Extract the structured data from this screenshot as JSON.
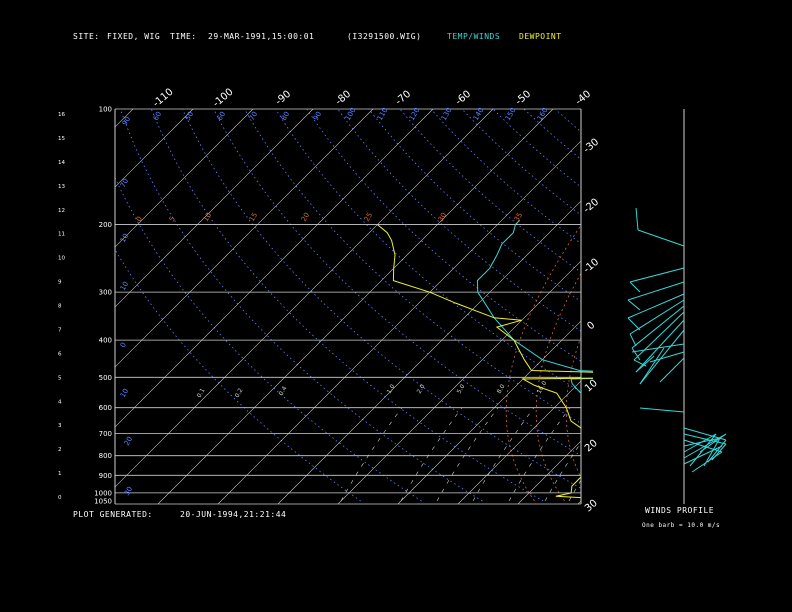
{
  "header": {
    "site_label": "SITE:",
    "site_value": "FIXED, WIG",
    "time_label": "TIME:",
    "time_value": "29-MAR-1991,15:00:01",
    "file_value": "(I3291500.WIG)",
    "legend_temp": "TEMP/WINDS",
    "legend_dew": "DEWPOINT"
  },
  "footer": {
    "plot_label": "PLOT GENERATED:",
    "plot_value": "20-JUN-1994,21:21:44",
    "winds_title": "WINDS PROFILE",
    "barb_note": "One barb = 10.0 m/s"
  },
  "colors": {
    "temp": "#33d8d8",
    "dew": "#f0f030",
    "grid": "#cfcfcf",
    "dry_adiabat": "#5a82ff",
    "moist_adiabat": "#d2692a",
    "mixing_ratio": "#cccccc"
  },
  "chart_data": {
    "type": "line",
    "diagram": "skew-T log-P",
    "pressure_levels": [
      100,
      200,
      300,
      400,
      500,
      600,
      700,
      800,
      900,
      1000,
      1050
    ],
    "height_ticks": [
      "16",
      "15",
      "14",
      "13",
      "12",
      "11",
      "10",
      "9",
      "8",
      "7",
      "6",
      "5",
      "4",
      "3",
      "2",
      "1",
      "0"
    ],
    "temperature_ticks": [
      "-110",
      "-100",
      "-90",
      "-80",
      "-70",
      "-60",
      "-50",
      "-40",
      "-30",
      "-20",
      "-10",
      "0",
      "10",
      "20",
      "30"
    ],
    "dry_adiabat_labels": [
      "90",
      "60",
      "50",
      "60",
      "70",
      "80",
      "90",
      "100",
      "110",
      "120",
      "130",
      "140",
      "150",
      "160",
      "70",
      "10",
      "10",
      "0",
      "10",
      "20",
      "30",
      "35"
    ],
    "moist_adiabat_labels": [
      "0",
      "5",
      "10",
      "15",
      "20",
      "25",
      "30",
      "35"
    ],
    "mixing_ratio_labels": [
      "0.1",
      "0.2",
      "0.4",
      "1.0",
      "2.0",
      "5.0",
      "8.0",
      "16.0"
    ],
    "series": [
      {
        "name": "TEMP/WINDS",
        "points": [
          [
            1025,
            23
          ],
          [
            1000,
            24
          ],
          [
            950,
            21
          ],
          [
            900,
            16
          ],
          [
            850,
            10
          ],
          [
            800,
            5
          ],
          [
            750,
            0
          ],
          [
            700,
            -5
          ],
          [
            650,
            -8
          ],
          [
            600,
            -13
          ],
          [
            550,
            -18
          ],
          [
            520,
            -21
          ],
          [
            505,
            -22
          ],
          [
            500,
            -9
          ],
          [
            490,
            -10
          ],
          [
            480,
            -22
          ],
          [
            450,
            -30
          ],
          [
            400,
            -38
          ],
          [
            350,
            -45
          ],
          [
            300,
            -52
          ],
          [
            280,
            -54
          ],
          [
            260,
            -54
          ],
          [
            240,
            -55
          ],
          [
            225,
            -56
          ],
          [
            210,
            -56
          ],
          [
            200,
            -57
          ],
          [
            195,
            -57
          ]
        ]
      },
      {
        "name": "DEWPOINT",
        "points": [
          [
            1040,
            5
          ],
          [
            1020,
            -5
          ],
          [
            1000,
            -3
          ],
          [
            960,
            -4
          ],
          [
            900,
            -4
          ],
          [
            850,
            -3
          ],
          [
            800,
            -6
          ],
          [
            750,
            -7
          ],
          [
            700,
            -10
          ],
          [
            650,
            -15
          ],
          [
            600,
            -18
          ],
          [
            550,
            -22
          ],
          [
            525,
            -27
          ],
          [
            505,
            -30
          ],
          [
            500,
            -9
          ],
          [
            490,
            -9
          ],
          [
            480,
            -30
          ],
          [
            450,
            -33
          ],
          [
            400,
            -38
          ],
          [
            370,
            -43
          ],
          [
            355,
            -40
          ],
          [
            350,
            -45
          ],
          [
            320,
            -54
          ],
          [
            300,
            -60
          ],
          [
            280,
            -68
          ],
          [
            260,
            -70
          ],
          [
            240,
            -72
          ],
          [
            220,
            -75
          ],
          [
            210,
            -77
          ],
          [
            200,
            -80
          ]
        ]
      }
    ]
  }
}
